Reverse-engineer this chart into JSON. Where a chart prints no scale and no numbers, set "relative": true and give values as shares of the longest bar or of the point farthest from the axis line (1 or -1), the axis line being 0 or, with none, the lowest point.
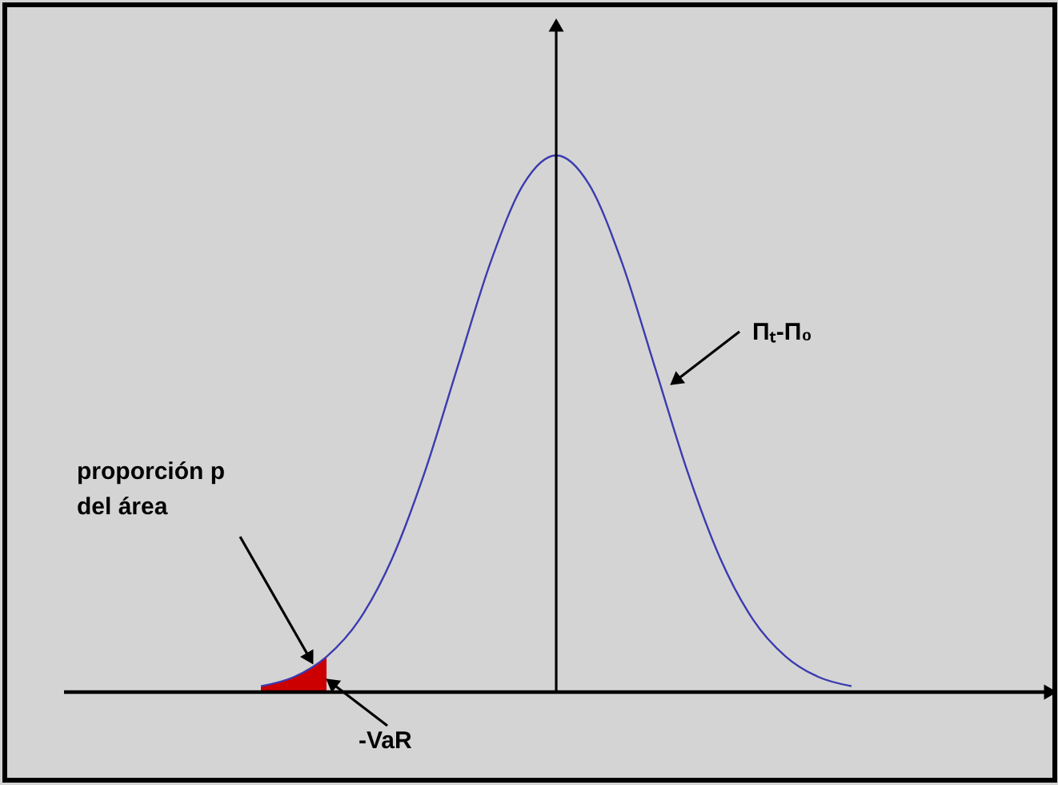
{
  "chart_data": {
    "type": "line",
    "relative": true,
    "tick_labels": false,
    "categories": [
      null,
      null,
      null,
      null,
      null,
      null,
      null,
      null,
      null,
      null,
      null,
      null,
      null,
      null,
      null,
      null,
      null,
      null,
      null,
      null,
      null,
      null,
      null,
      null,
      null,
      null,
      null,
      null,
      null,
      null,
      null
    ],
    "series": [
      {
        "color": "#3b3bb0",
        "values": [
          null,
          null,
          null,
          null,
          null,
          null,
          0.011,
          0.028,
          0.066,
          0.135,
          0.249,
          0.411,
          0.607,
          0.801,
          0.946,
          1,
          0.946,
          0.801,
          0.607,
          0.411,
          0.249,
          0.135,
          0.066,
          0.028,
          0.011,
          null,
          null,
          null,
          null,
          null,
          null
        ]
      },
      {
        "type": "area",
        "color": "#cc0000",
        "values": [
          null,
          null,
          null,
          null,
          null,
          null,
          0.011,
          0.028,
          0.066,
          null,
          null,
          null,
          null,
          null,
          null,
          null,
          null,
          null,
          null,
          null,
          null,
          null,
          null,
          null,
          null,
          null,
          null,
          null,
          null,
          null,
          null
        ]
      }
    ],
    "annotations": [
      "Πₜ-Π₀",
      "proporción p\ndel área",
      "-VaR"
    ]
  }
}
